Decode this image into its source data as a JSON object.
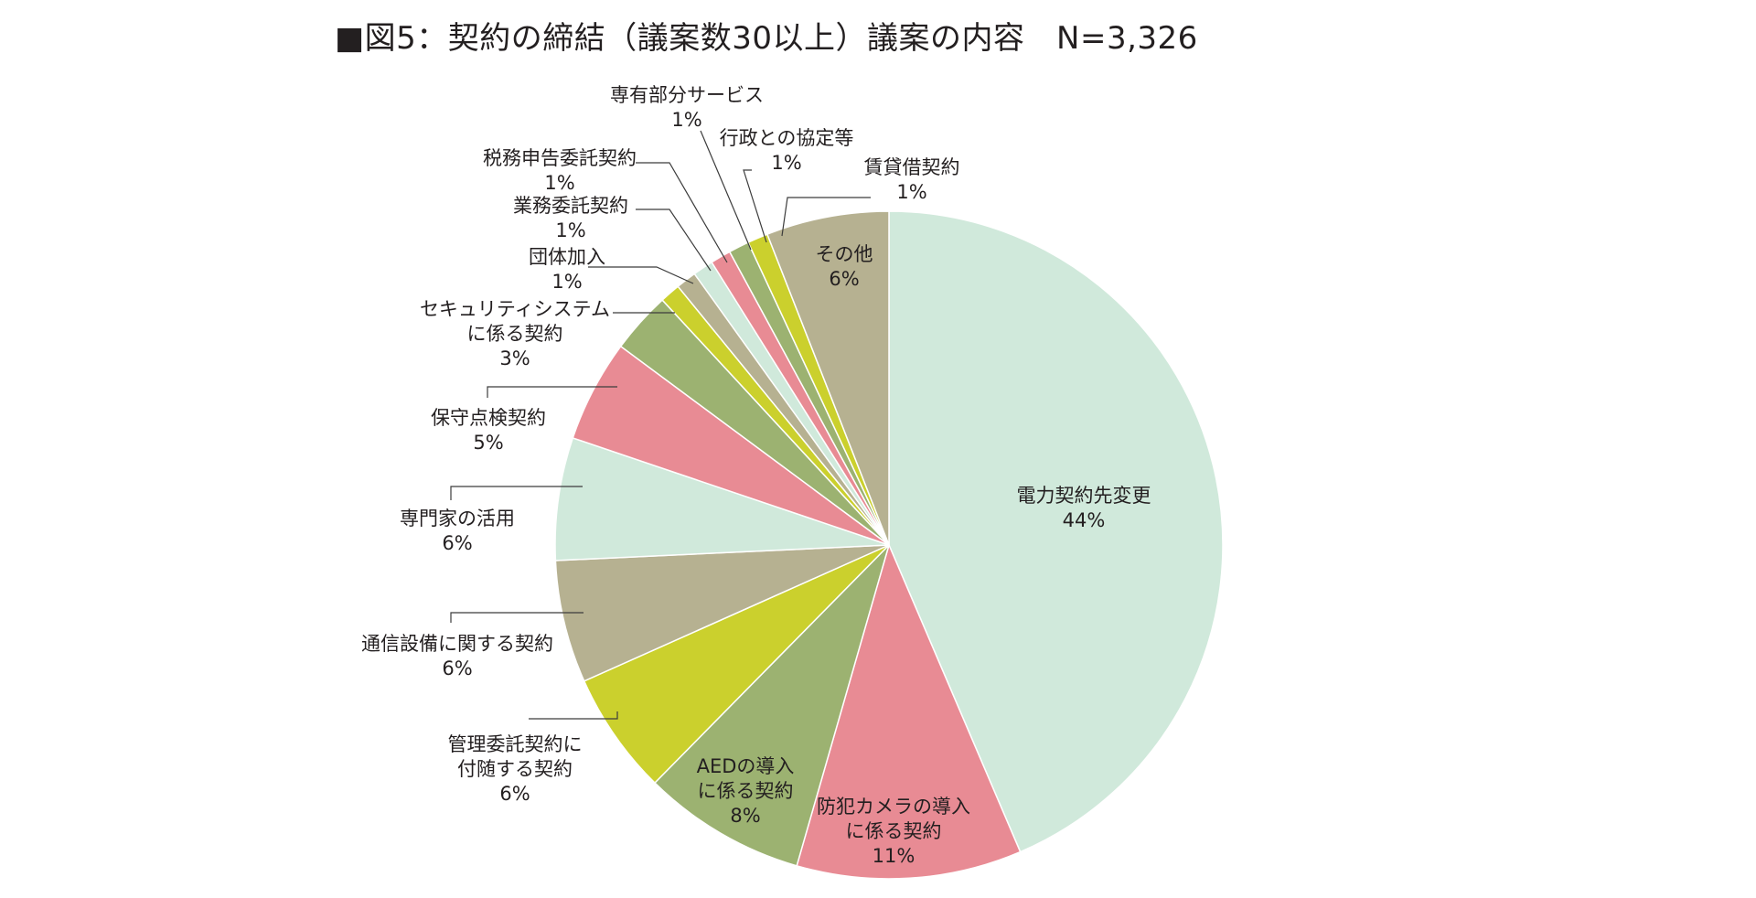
{
  "chart_data": {
    "type": "pie",
    "title": "■図5：契約の締結（議案数30以上）議案の内容　N=3,326",
    "total_label": "N=3,326",
    "slices": [
      {
        "name": "電力契約先変更",
        "value": 44,
        "label": "44%",
        "color": "#d0e9db"
      },
      {
        "name": "防犯カメラの導入に係る契約",
        "value": 11,
        "label": "11%",
        "color": "#e88b94"
      },
      {
        "name": "AEDの導入に係る契約",
        "value": 8,
        "label": "8%",
        "color": "#9cb271"
      },
      {
        "name": "管理委託契約に付随する契約",
        "value": 6,
        "label": "6%",
        "color": "#cbd02d"
      },
      {
        "name": "通信設備に関する契約",
        "value": 6,
        "label": "6%",
        "color": "#b6b191"
      },
      {
        "name": "専門家の活用",
        "value": 6,
        "label": "6%",
        "color": "#d0e9db"
      },
      {
        "name": "保守点検契約",
        "value": 5,
        "label": "5%",
        "color": "#e88b94"
      },
      {
        "name": "セキュリティシステムに係る契約",
        "value": 3,
        "label": "3%",
        "color": "#9cb271"
      },
      {
        "name": "団体加入",
        "value": 1,
        "label": "1%",
        "color": "#cbd02d"
      },
      {
        "name": "業務委託契約",
        "value": 1,
        "label": "1%",
        "color": "#b6b191"
      },
      {
        "name": "税務申告委託契約",
        "value": 1,
        "label": "1%",
        "color": "#d0e9db"
      },
      {
        "name": "専有部分サービス",
        "value": 1,
        "label": "1%",
        "color": "#e88b94"
      },
      {
        "name": "行政との協定等",
        "value": 1,
        "label": "1%",
        "color": "#9cb271"
      },
      {
        "name": "賃貸借契約",
        "value": 1,
        "label": "1%",
        "color": "#cbd02d"
      },
      {
        "name": "その他",
        "value": 6,
        "label": "6%",
        "color": "#b6b191"
      }
    ],
    "label_lines": [
      [
        "電力契約先変更"
      ],
      [
        "防犯カメラの導入",
        "に係る契約"
      ],
      [
        "AEDの導入",
        "に係る契約"
      ],
      [
        "管理委託契約に",
        "付随する契約"
      ],
      [
        "通信設備に関する契約"
      ],
      [
        "専門家の活用"
      ],
      [
        "保守点検契約"
      ],
      [
        "セキュリティシステム",
        "に係る契約"
      ],
      [
        "団体加入"
      ],
      [
        "業務委託契約"
      ],
      [
        "税務申告委託契約"
      ],
      [
        "専有部分サービス"
      ],
      [
        "行政との協定等"
      ],
      [
        "賃貸借契約"
      ],
      [
        "その他"
      ]
    ]
  }
}
